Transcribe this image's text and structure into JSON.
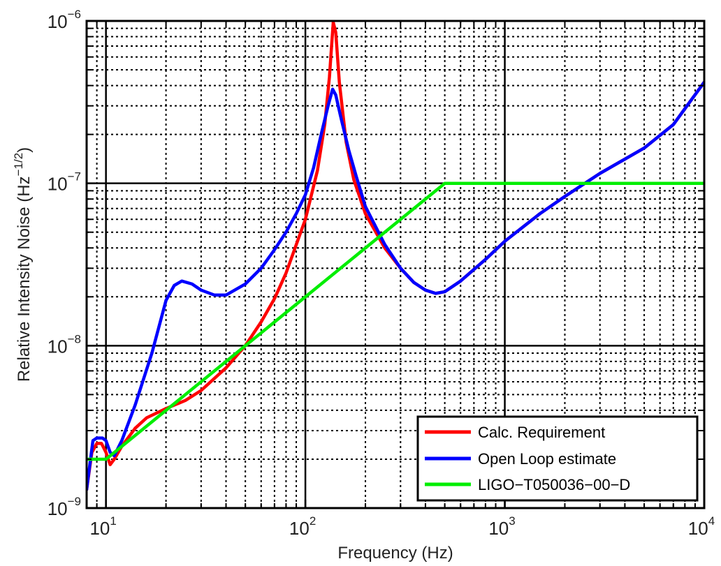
{
  "chart_data": {
    "type": "line",
    "xscale": "log",
    "yscale": "log",
    "xlim": [
      8,
      10000
    ],
    "ylim": [
      1e-09,
      1e-06
    ],
    "xlabel": "Frequency (Hz)",
    "ylabel": "Relative Intensity Noise (Hz",
    "ylabel_exp": "−1/2",
    "ylabel_close": ")",
    "grid": true,
    "legend_position": "bottom-right",
    "x_ticks": [
      {
        "value": 10,
        "base": "10",
        "exp": "1"
      },
      {
        "value": 100,
        "base": "10",
        "exp": "2"
      },
      {
        "value": 1000,
        "base": "10",
        "exp": "3"
      },
      {
        "value": 10000,
        "base": "10",
        "exp": "4"
      }
    ],
    "y_ticks": [
      {
        "value": 1e-09,
        "base": "10",
        "exp": "−9"
      },
      {
        "value": 1e-08,
        "base": "10",
        "exp": "−8"
      },
      {
        "value": 1e-07,
        "base": "10",
        "exp": "−7"
      },
      {
        "value": 1e-06,
        "base": "10",
        "exp": "−6"
      }
    ],
    "series": [
      {
        "name": "Calc. Requirement",
        "color": "#ff0000",
        "points": [
          [
            8,
            1.3e-09
          ],
          [
            8.5,
            2.2e-09
          ],
          [
            9,
            2.5e-09
          ],
          [
            9.5,
            2.5e-09
          ],
          [
            10,
            2.2e-09
          ],
          [
            10.5,
            1.85e-09
          ],
          [
            11,
            2e-09
          ],
          [
            12,
            2.4e-09
          ],
          [
            14,
            3.1e-09
          ],
          [
            16,
            3.6e-09
          ],
          [
            20,
            4.1e-09
          ],
          [
            25,
            4.6e-09
          ],
          [
            30,
            5.3e-09
          ],
          [
            40,
            7.3e-09
          ],
          [
            50,
            1e-08
          ],
          [
            60,
            1.4e-08
          ],
          [
            70,
            1.95e-08
          ],
          [
            80,
            2.8e-08
          ],
          [
            100,
            6e-08
          ],
          [
            115,
            1.2e-07
          ],
          [
            125,
            2.3e-07
          ],
          [
            132,
            4.5e-07
          ],
          [
            138,
            9.8e-07
          ],
          [
            142,
            8.5e-07
          ],
          [
            148,
            4.2e-07
          ],
          [
            160,
            1.8e-07
          ],
          [
            175,
            1.05e-07
          ],
          [
            200,
            6.5e-08
          ],
          [
            250,
            4e-08
          ],
          [
            300,
            3e-08
          ],
          [
            350,
            2.45e-08
          ],
          [
            400,
            2.2e-08
          ],
          [
            450,
            2.1e-08
          ],
          [
            500,
            2.15e-08
          ],
          [
            600,
            2.5e-08
          ],
          [
            800,
            3.4e-08
          ],
          [
            1000,
            4.4e-08
          ],
          [
            1500,
            6.5e-08
          ],
          [
            2000,
            8.3e-08
          ],
          [
            3000,
            1.15e-07
          ],
          [
            5000,
            1.65e-07
          ],
          [
            7000,
            2.3e-07
          ],
          [
            10000,
            4.2e-07
          ]
        ]
      },
      {
        "name": "Open Loop estimate",
        "color": "#0000ff",
        "points": [
          [
            8,
            1.3e-09
          ],
          [
            8.6,
            2.6e-09
          ],
          [
            9,
            2.7e-09
          ],
          [
            9.6,
            2.7e-09
          ],
          [
            10,
            2.6e-09
          ],
          [
            10.5,
            2.2e-09
          ],
          [
            11,
            2.1e-09
          ],
          [
            12,
            2.6e-09
          ],
          [
            14,
            4.3e-09
          ],
          [
            17,
            9e-09
          ],
          [
            20,
            1.9e-08
          ],
          [
            22,
            2.35e-08
          ],
          [
            24,
            2.5e-08
          ],
          [
            27,
            2.4e-08
          ],
          [
            30,
            2.2e-08
          ],
          [
            35,
            2.05e-08
          ],
          [
            40,
            2.05e-08
          ],
          [
            50,
            2.4e-08
          ],
          [
            60,
            3e-08
          ],
          [
            70,
            3.9e-08
          ],
          [
            80,
            5e-08
          ],
          [
            90,
            6.5e-08
          ],
          [
            100,
            8.5e-08
          ],
          [
            110,
            1.25e-07
          ],
          [
            120,
            2e-07
          ],
          [
            130,
            3e-07
          ],
          [
            137,
            3.8e-07
          ],
          [
            142,
            3.5e-07
          ],
          [
            150,
            2.6e-07
          ],
          [
            165,
            1.6e-07
          ],
          [
            180,
            1.1e-07
          ],
          [
            200,
            7.2e-08
          ],
          [
            250,
            4.2e-08
          ],
          [
            300,
            3e-08
          ],
          [
            350,
            2.45e-08
          ],
          [
            400,
            2.2e-08
          ],
          [
            450,
            2.1e-08
          ],
          [
            500,
            2.15e-08
          ],
          [
            600,
            2.5e-08
          ],
          [
            800,
            3.4e-08
          ],
          [
            1000,
            4.4e-08
          ],
          [
            1500,
            6.5e-08
          ],
          [
            2000,
            8.3e-08
          ],
          [
            3000,
            1.15e-07
          ],
          [
            5000,
            1.65e-07
          ],
          [
            7000,
            2.3e-07
          ],
          [
            10000,
            4.2e-07
          ]
        ]
      },
      {
        "name": "LIGO−T050036−00−D",
        "color": "#00ee00",
        "points": [
          [
            8,
            2e-09
          ],
          [
            10,
            2e-09
          ],
          [
            500,
            1e-07
          ],
          [
            10000,
            1e-07
          ]
        ]
      }
    ]
  }
}
